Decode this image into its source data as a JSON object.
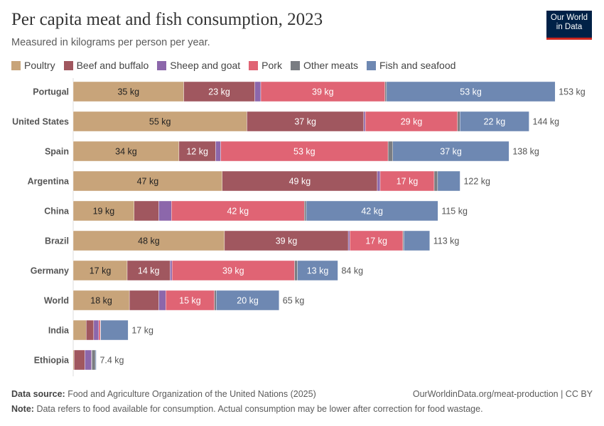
{
  "header": {
    "title": "Per capita meat and fish consumption, 2023",
    "subtitle": "Measured in kilograms per person per year.",
    "logo": "Our World in Data"
  },
  "footer": {
    "source_label": "Data source:",
    "source": "Food and Agriculture Organization of the United Nations (2025)",
    "url": "OurWorldinData.org/meat-production | CC BY",
    "note_label": "Note:",
    "note": "Data refers to food available for consumption. Actual consumption may be lower after correction for food wastage."
  },
  "chart_data": {
    "type": "bar",
    "orientation": "horizontal",
    "stacked": true,
    "unit": "kg",
    "legend_position": "top",
    "grid": false,
    "xlim": [
      0,
      153
    ],
    "categories": [
      "Portugal",
      "United States",
      "Spain",
      "Argentina",
      "China",
      "Brazil",
      "Germany",
      "World",
      "India",
      "Ethiopia"
    ],
    "totals": [
      "153 kg",
      "144 kg",
      "138 kg",
      "122 kg",
      "115 kg",
      "113 kg",
      "84 kg",
      "65 kg",
      "17 kg",
      "7.4 kg"
    ],
    "series": [
      {
        "name": "Poultry",
        "color": "#c8a47a",
        "values": [
          35,
          55,
          33.5,
          47.2,
          19.3,
          47.9,
          17.1,
          17.8,
          4.1,
          0.3
        ]
      },
      {
        "name": "Beef and buffalo",
        "color": "#a0575f",
        "values": [
          22.5,
          37,
          11.6,
          49.1,
          7.8,
          39.2,
          13.6,
          9.3,
          2.4,
          3.4
        ]
      },
      {
        "name": "Sheep and goat",
        "color": "#8c67ab",
        "values": [
          1.9,
          0.5,
          1.6,
          0.9,
          4,
          0.5,
          0.6,
          2.2,
          1.6,
          2.1
        ]
      },
      {
        "name": "Pork",
        "color": "#e06474",
        "values": [
          39.3,
          29.2,
          53,
          17.1,
          42.1,
          16.8,
          38.8,
          15.4,
          0.5,
          0.1
        ]
      },
      {
        "name": "Other meats",
        "color": "#7a7d82",
        "values": [
          0.5,
          0.75,
          1.5,
          1.1,
          0.6,
          0.3,
          0.9,
          0.6,
          0.1,
          1.1
        ]
      },
      {
        "name": "Fish and seafood",
        "color": "#6e88b2",
        "values": [
          53.4,
          21.9,
          36.8,
          7.1,
          41.7,
          8.2,
          12.8,
          19.9,
          8.7,
          0.3
        ]
      }
    ]
  }
}
